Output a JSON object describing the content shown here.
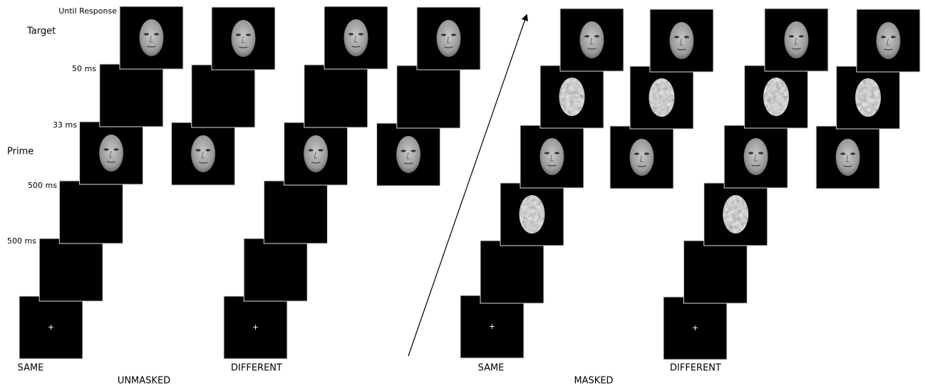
{
  "stage_labels": [
    "Target",
    "Prime"
  ],
  "timing_labels": [
    "Until Response",
    "50 ms",
    "33 ms",
    "500 ms",
    "500 ms"
  ],
  "fixation": "+",
  "panels": [
    {
      "title": "UNMASKED",
      "conditions": [
        "SAME",
        "DIFFERENT"
      ]
    },
    {
      "title": "MASKED",
      "conditions": [
        "SAME",
        "DIFFERENT"
      ]
    }
  ]
}
